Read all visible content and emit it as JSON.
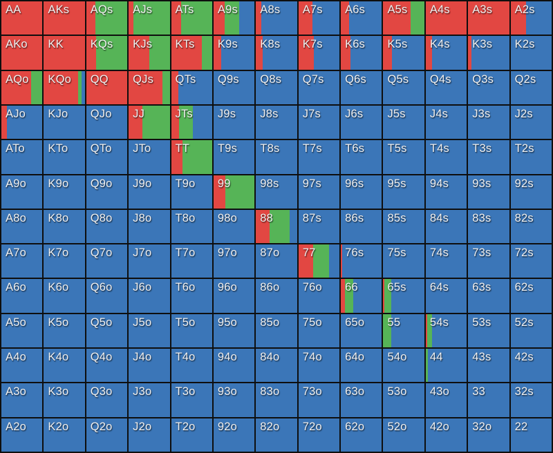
{
  "colors": {
    "red": "#e24742",
    "green": "#56b457",
    "blue": "#3b76b8",
    "grid_line": "#0e0e0e",
    "label_text": "#f2f2f2"
  },
  "chart_data": {
    "type": "heatmap",
    "title": "",
    "xlabel": "",
    "ylabel": "",
    "grid": "13x13 poker starting-hand matrix",
    "cell_value_format": "[hand_label, red_pct, green_pct, blue_pct]",
    "rows": [
      [
        [
          "AA",
          100,
          0,
          0
        ],
        [
          "AKs",
          100,
          0,
          0
        ],
        [
          "AQs",
          22,
          78,
          0
        ],
        [
          "AJs",
          12,
          88,
          0
        ],
        [
          "ATs",
          25,
          75,
          0
        ],
        [
          "A9s",
          27,
          35,
          38
        ],
        [
          "A8s",
          13,
          0,
          87
        ],
        [
          "A7s",
          35,
          0,
          65
        ],
        [
          "A6s",
          20,
          0,
          80
        ],
        [
          "A5s",
          66,
          34,
          0
        ],
        [
          "A4s",
          100,
          0,
          0
        ],
        [
          "A3s",
          100,
          0,
          0
        ],
        [
          "A2s",
          38,
          0,
          62
        ]
      ],
      [
        [
          "AKo",
          100,
          0,
          0
        ],
        [
          "KK",
          100,
          0,
          0
        ],
        [
          "KQs",
          24,
          76,
          0
        ],
        [
          "KJs",
          50,
          50,
          0
        ],
        [
          "KTs",
          75,
          25,
          0
        ],
        [
          "K9s",
          19,
          0,
          81
        ],
        [
          "K8s",
          16,
          0,
          84
        ],
        [
          "K7s",
          37,
          0,
          63
        ],
        [
          "K6s",
          23,
          0,
          77
        ],
        [
          "K5s",
          21,
          0,
          79
        ],
        [
          "K4s",
          16,
          0,
          84
        ],
        [
          "K3s",
          8,
          0,
          92
        ],
        [
          "K2s",
          0,
          0,
          100
        ]
      ],
      [
        [
          "AQo",
          72,
          28,
          0
        ],
        [
          "KQo",
          84,
          8,
          8
        ],
        [
          "QQ",
          100,
          0,
          0
        ],
        [
          "QJs",
          82,
          18,
          0
        ],
        [
          "QTs",
          18,
          0,
          82
        ],
        [
          "Q9s",
          0,
          0,
          100
        ],
        [
          "Q8s",
          0,
          0,
          100
        ],
        [
          "Q7s",
          0,
          0,
          100
        ],
        [
          "Q6s",
          0,
          0,
          100
        ],
        [
          "Q5s",
          0,
          0,
          100
        ],
        [
          "Q4s",
          0,
          0,
          100
        ],
        [
          "Q3s",
          0,
          0,
          100
        ],
        [
          "Q2s",
          0,
          0,
          100
        ]
      ],
      [
        [
          "AJo",
          13,
          0,
          87
        ],
        [
          "KJo",
          0,
          0,
          100
        ],
        [
          "QJo",
          0,
          0,
          100
        ],
        [
          "JJ",
          33,
          67,
          0
        ],
        [
          "JTs",
          20,
          33,
          47
        ],
        [
          "J9s",
          0,
          0,
          100
        ],
        [
          "J8s",
          0,
          0,
          100
        ],
        [
          "J7s",
          0,
          0,
          100
        ],
        [
          "J6s",
          0,
          0,
          100
        ],
        [
          "J5s",
          0,
          0,
          100
        ],
        [
          "J4s",
          0,
          0,
          100
        ],
        [
          "J3s",
          0,
          0,
          100
        ],
        [
          "J2s",
          0,
          0,
          100
        ]
      ],
      [
        [
          "ATo",
          0,
          0,
          100
        ],
        [
          "KTo",
          0,
          0,
          100
        ],
        [
          "QTo",
          0,
          0,
          100
        ],
        [
          "JTo",
          0,
          0,
          100
        ],
        [
          "TT",
          28,
          72,
          0
        ],
        [
          "T9s",
          0,
          0,
          100
        ],
        [
          "T8s",
          0,
          0,
          100
        ],
        [
          "T7s",
          0,
          0,
          100
        ],
        [
          "T6s",
          0,
          0,
          100
        ],
        [
          "T5s",
          0,
          0,
          100
        ],
        [
          "T4s",
          0,
          0,
          100
        ],
        [
          "T3s",
          0,
          0,
          100
        ],
        [
          "T2s",
          0,
          0,
          100
        ]
      ],
      [
        [
          "A9o",
          0,
          0,
          100
        ],
        [
          "K9o",
          0,
          0,
          100
        ],
        [
          "Q9o",
          0,
          0,
          100
        ],
        [
          "J9o",
          0,
          0,
          100
        ],
        [
          "T9o",
          0,
          0,
          100
        ],
        [
          "99",
          28,
          72,
          0
        ],
        [
          "98s",
          0,
          0,
          100
        ],
        [
          "97s",
          0,
          0,
          100
        ],
        [
          "96s",
          0,
          0,
          100
        ],
        [
          "95s",
          0,
          0,
          100
        ],
        [
          "94s",
          0,
          0,
          100
        ],
        [
          "93s",
          0,
          0,
          100
        ],
        [
          "92s",
          0,
          0,
          100
        ]
      ],
      [
        [
          "A8o",
          0,
          0,
          100
        ],
        [
          "K8o",
          0,
          0,
          100
        ],
        [
          "Q8o",
          0,
          0,
          100
        ],
        [
          "J8o",
          0,
          0,
          100
        ],
        [
          "T8o",
          0,
          0,
          100
        ],
        [
          "98o",
          0,
          0,
          100
        ],
        [
          "88",
          34,
          48,
          18
        ],
        [
          "87s",
          0,
          0,
          100
        ],
        [
          "86s",
          0,
          0,
          100
        ],
        [
          "85s",
          0,
          0,
          100
        ],
        [
          "84s",
          0,
          0,
          100
        ],
        [
          "83s",
          0,
          0,
          100
        ],
        [
          "82s",
          0,
          0,
          100
        ]
      ],
      [
        [
          "A7o",
          0,
          0,
          100
        ],
        [
          "K7o",
          0,
          0,
          100
        ],
        [
          "Q7o",
          0,
          0,
          100
        ],
        [
          "J7o",
          0,
          0,
          100
        ],
        [
          "T7o",
          0,
          0,
          100
        ],
        [
          "97o",
          0,
          0,
          100
        ],
        [
          "87o",
          0,
          0,
          100
        ],
        [
          "77",
          36,
          39,
          25
        ],
        [
          "76s",
          3,
          0,
          97
        ],
        [
          "75s",
          0,
          0,
          100
        ],
        [
          "74s",
          0,
          0,
          100
        ],
        [
          "73s",
          0,
          0,
          100
        ],
        [
          "72s",
          0,
          0,
          100
        ]
      ],
      [
        [
          "A6o",
          0,
          0,
          100
        ],
        [
          "K6o",
          0,
          0,
          100
        ],
        [
          "Q6o",
          0,
          0,
          100
        ],
        [
          "J6o",
          0,
          0,
          100
        ],
        [
          "T6o",
          0,
          0,
          100
        ],
        [
          "96o",
          0,
          0,
          100
        ],
        [
          "86o",
          0,
          0,
          100
        ],
        [
          "76o",
          0,
          0,
          100
        ],
        [
          "66",
          10,
          20,
          70
        ],
        [
          "65s",
          3,
          17,
          80
        ],
        [
          "64s",
          0,
          0,
          100
        ],
        [
          "63s",
          0,
          0,
          100
        ],
        [
          "62s",
          0,
          0,
          100
        ]
      ],
      [
        [
          "A5o",
          0,
          0,
          100
        ],
        [
          "K5o",
          0,
          0,
          100
        ],
        [
          "Q5o",
          0,
          0,
          100
        ],
        [
          "J5o",
          0,
          0,
          100
        ],
        [
          "T5o",
          0,
          0,
          100
        ],
        [
          "95o",
          0,
          0,
          100
        ],
        [
          "85o",
          0,
          0,
          100
        ],
        [
          "75o",
          0,
          0,
          100
        ],
        [
          "65o",
          0,
          0,
          100
        ],
        [
          "55",
          0,
          20,
          80
        ],
        [
          "54s",
          3,
          13,
          84
        ],
        [
          "53s",
          0,
          0,
          100
        ],
        [
          "52s",
          0,
          0,
          100
        ]
      ],
      [
        [
          "A4o",
          0,
          0,
          100
        ],
        [
          "K4o",
          0,
          0,
          100
        ],
        [
          "Q4o",
          0,
          0,
          100
        ],
        [
          "J4o",
          0,
          0,
          100
        ],
        [
          "T4o",
          0,
          0,
          100
        ],
        [
          "94o",
          0,
          0,
          100
        ],
        [
          "84o",
          0,
          0,
          100
        ],
        [
          "74o",
          0,
          0,
          100
        ],
        [
          "64o",
          0,
          0,
          100
        ],
        [
          "54o",
          0,
          0,
          100
        ],
        [
          "44",
          0,
          5,
          95
        ],
        [
          "43s",
          0,
          0,
          100
        ],
        [
          "42s",
          0,
          0,
          100
        ]
      ],
      [
        [
          "A3o",
          0,
          0,
          100
        ],
        [
          "K3o",
          0,
          0,
          100
        ],
        [
          "Q3o",
          0,
          0,
          100
        ],
        [
          "J3o",
          0,
          0,
          100
        ],
        [
          "T3o",
          0,
          0,
          100
        ],
        [
          "93o",
          0,
          0,
          100
        ],
        [
          "83o",
          0,
          0,
          100
        ],
        [
          "73o",
          0,
          0,
          100
        ],
        [
          "63o",
          0,
          0,
          100
        ],
        [
          "53o",
          0,
          0,
          100
        ],
        [
          "43o",
          0,
          0,
          100
        ],
        [
          "33",
          0,
          0,
          100
        ],
        [
          "32s",
          0,
          0,
          100
        ]
      ],
      [
        [
          "A2o",
          0,
          0,
          100
        ],
        [
          "K2o",
          0,
          0,
          100
        ],
        [
          "Q2o",
          0,
          0,
          100
        ],
        [
          "J2o",
          0,
          0,
          100
        ],
        [
          "T2o",
          0,
          0,
          100
        ],
        [
          "92o",
          0,
          0,
          100
        ],
        [
          "82o",
          0,
          0,
          100
        ],
        [
          "72o",
          0,
          0,
          100
        ],
        [
          "62o",
          0,
          0,
          100
        ],
        [
          "52o",
          0,
          0,
          100
        ],
        [
          "42o",
          0,
          0,
          100
        ],
        [
          "32o",
          0,
          0,
          100
        ],
        [
          "22",
          0,
          0,
          100
        ]
      ]
    ]
  }
}
